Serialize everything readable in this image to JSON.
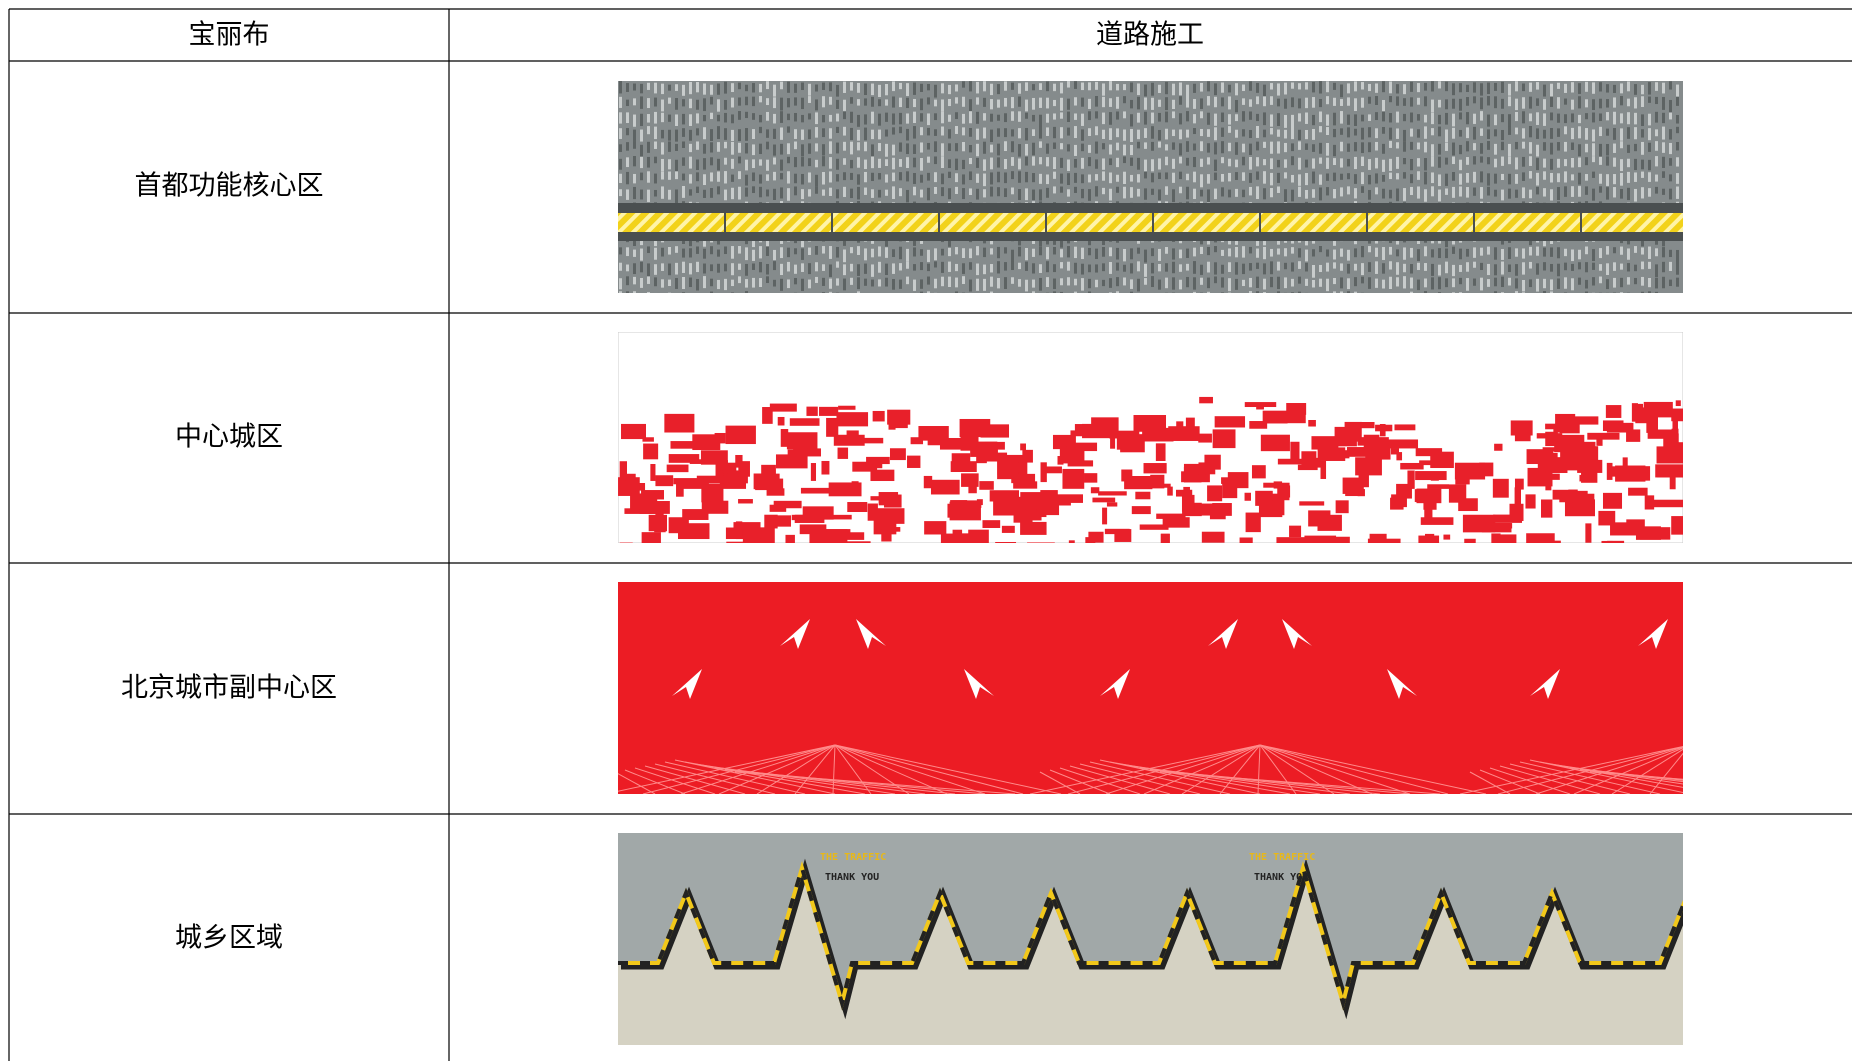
{
  "table": {
    "header": [
      "宝丽布",
      "道路施工"
    ],
    "rows": [
      [
        "首都功能核心区"
      ],
      [
        "中心城区"
      ],
      [
        "北京城市副中心区"
      ],
      [
        "城乡区域"
      ]
    ]
  },
  "images": {
    "3": {
      "texts": [
        "THE TRAFFIC",
        "THANK YOU"
      ]
    }
  }
}
